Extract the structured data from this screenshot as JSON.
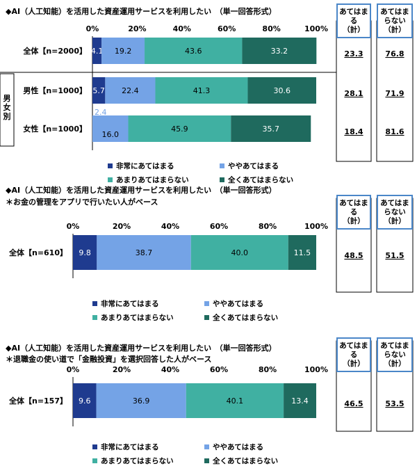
{
  "colors": {
    "very_much": "#1f3b8f",
    "somewhat": "#74a3e6",
    "not_much": "#40b0a2",
    "not_at_all": "#1f6a5e",
    "header_border": "#4a86c8"
  },
  "summary_headers": {
    "applies": "あてはまる（計）",
    "not_applies": "あてはまらない（計）"
  },
  "gender_group_label": "男女別",
  "chart_data": [
    {
      "type": "bar",
      "orientation": "horizontal",
      "stacked": true,
      "title": "◆AI（人工知能）を活用した資産運用サービスを利用したい　（単一回答形式）",
      "subtitle": "",
      "x_tick_labels": [
        "0%",
        "20%",
        "40%",
        "60%",
        "80%",
        "100%"
      ],
      "xlim": [
        0,
        100
      ],
      "legend_position": "bottom",
      "categories": [
        "全体【n=2000】",
        "男性【n=1000】",
        "女性【n=1000】"
      ],
      "series": [
        {
          "name": "非常にあてはまる",
          "values": [
            4.1,
            5.7,
            2.4
          ]
        },
        {
          "name": "ややあてはまる",
          "values": [
            19.2,
            22.4,
            16.0
          ]
        },
        {
          "name": "あまりあてはまらない",
          "values": [
            43.6,
            41.3,
            45.9
          ]
        },
        {
          "name": "全くあてはまらない",
          "values": [
            33.2,
            30.6,
            35.7
          ]
        }
      ],
      "summary_applies": [
        "23.3",
        "28.1",
        "18.4"
      ],
      "summary_not_applies": [
        "76.8",
        "71.9",
        "81.6"
      ]
    },
    {
      "type": "bar",
      "orientation": "horizontal",
      "stacked": true,
      "title": "◆AI（人工知能）を活用した資産運用サービスを利用したい　（単一回答形式）",
      "subtitle": "＊お金の管理をアプリで行いたい人がベース",
      "x_tick_labels": [
        "0%",
        "20%",
        "40%",
        "60%",
        "80%",
        "100%"
      ],
      "xlim": [
        0,
        100
      ],
      "legend_position": "bottom",
      "categories": [
        "全体【n=610】"
      ],
      "series": [
        {
          "name": "非常にあてはまる",
          "values": [
            9.8
          ]
        },
        {
          "name": "ややあてはまる",
          "values": [
            38.7
          ]
        },
        {
          "name": "あまりあてはまらない",
          "values": [
            40.0
          ]
        },
        {
          "name": "全くあてはまらない",
          "values": [
            11.5
          ]
        }
      ],
      "summary_applies": [
        "48.5"
      ],
      "summary_not_applies": [
        "51.5"
      ]
    },
    {
      "type": "bar",
      "orientation": "horizontal",
      "stacked": true,
      "title": "◆AI（人工知能）を活用した資産運用サービスを利用したい　（単一回答形式）",
      "subtitle": "＊退職金の使い道で「金融投資」を選択回答した人がベース",
      "x_tick_labels": [
        "0%",
        "20%",
        "40%",
        "60%",
        "80%",
        "100%"
      ],
      "xlim": [
        0,
        100
      ],
      "legend_position": "bottom",
      "categories": [
        "全体【n=157】"
      ],
      "series": [
        {
          "name": "非常にあてはまる",
          "values": [
            9.6
          ]
        },
        {
          "name": "ややあてはまる",
          "values": [
            36.9
          ]
        },
        {
          "name": "あまりあてはまらない",
          "values": [
            40.1
          ]
        },
        {
          "name": "全くあてはまらない",
          "values": [
            13.4
          ]
        }
      ],
      "summary_applies": [
        "46.5"
      ],
      "summary_not_applies": [
        "53.5"
      ]
    }
  ]
}
